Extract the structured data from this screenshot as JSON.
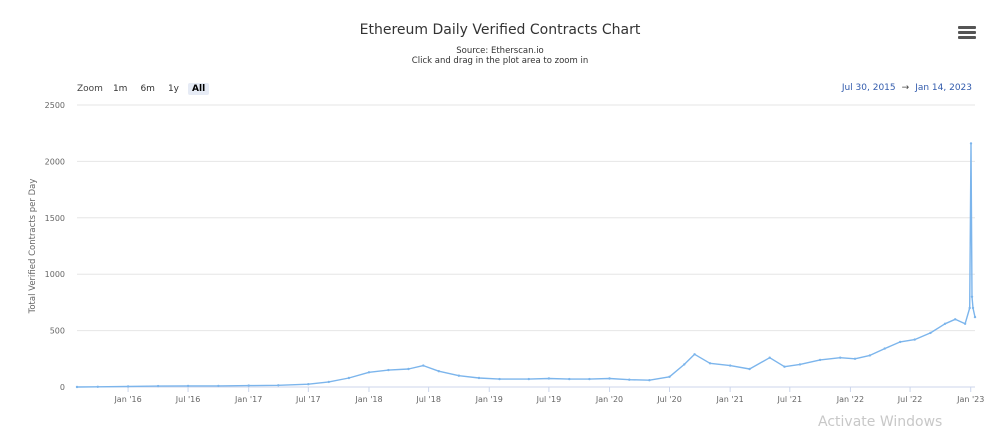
{
  "header": {
    "title": "Ethereum Daily Verified Contracts Chart",
    "source": "Source: Etherscan.io",
    "hint": "Click and drag in the plot area to zoom in",
    "menu_icon": "hamburger-menu-icon"
  },
  "zoom": {
    "label": "Zoom",
    "buttons": [
      "1m",
      "6m",
      "1y",
      "All"
    ],
    "active": "All"
  },
  "range": {
    "from": "Jul 30, 2015",
    "arrow": "→",
    "to": "Jan 14, 2023"
  },
  "watermark": "Activate Windows",
  "colors": {
    "series": "#7cb5ec",
    "grid": "#e6e6e6",
    "axis_text": "#666666",
    "range_text": "#335cad"
  },
  "chart_data": {
    "type": "line",
    "title": "Ethereum Daily Verified Contracts Chart",
    "subtitle": "Source: Etherscan.io",
    "xlabel": "",
    "ylabel": "Total Verified Contracts per Day",
    "ylim": [
      0,
      2500
    ],
    "yticks": [
      0,
      500,
      1000,
      1500,
      2000,
      2500
    ],
    "xlim": [
      "2015-07-30",
      "2023-01-14"
    ],
    "xticks": [
      {
        "date": "2016-01-01",
        "label": "Jan '16"
      },
      {
        "date": "2016-07-01",
        "label": "Jul '16"
      },
      {
        "date": "2017-01-01",
        "label": "Jan '17"
      },
      {
        "date": "2017-07-01",
        "label": "Jul '17"
      },
      {
        "date": "2018-01-01",
        "label": "Jan '18"
      },
      {
        "date": "2018-07-01",
        "label": "Jul '18"
      },
      {
        "date": "2019-01-01",
        "label": "Jan '19"
      },
      {
        "date": "2019-07-01",
        "label": "Jul '19"
      },
      {
        "date": "2020-01-01",
        "label": "Jan '20"
      },
      {
        "date": "2020-07-01",
        "label": "Jul '20"
      },
      {
        "date": "2021-01-01",
        "label": "Jan '21"
      },
      {
        "date": "2021-07-01",
        "label": "Jul '21"
      },
      {
        "date": "2022-01-01",
        "label": "Jan '22"
      },
      {
        "date": "2022-07-01",
        "label": "Jul '22"
      },
      {
        "date": "2023-01-01",
        "label": "Jan '23"
      }
    ],
    "grid": true,
    "legend": false,
    "series": [
      {
        "x": [
          "2015-07-30",
          "2015-10-01",
          "2016-01-01",
          "2016-04-01",
          "2016-07-01",
          "2016-10-01",
          "2017-01-01",
          "2017-04-01",
          "2017-07-01",
          "2017-09-01",
          "2017-11-01",
          "2018-01-01",
          "2018-03-01",
          "2018-05-01",
          "2018-06-15",
          "2018-08-01",
          "2018-10-01",
          "2018-12-01",
          "2019-02-01",
          "2019-05-01",
          "2019-07-01",
          "2019-09-01",
          "2019-11-01",
          "2020-01-01",
          "2020-03-01",
          "2020-05-01",
          "2020-07-01",
          "2020-08-15",
          "2020-09-15",
          "2020-11-01",
          "2021-01-01",
          "2021-03-01",
          "2021-05-01",
          "2021-06-15",
          "2021-08-01",
          "2021-10-01",
          "2021-12-01",
          "2022-01-15",
          "2022-03-01",
          "2022-04-15",
          "2022-06-01",
          "2022-07-15",
          "2022-09-01",
          "2022-10-15",
          "2022-11-15",
          "2022-12-15",
          "2022-12-29",
          "2023-01-02",
          "2023-01-05",
          "2023-01-08",
          "2023-01-14"
        ],
        "values": [
          0,
          2,
          5,
          8,
          10,
          10,
          12,
          15,
          25,
          45,
          80,
          130,
          150,
          160,
          190,
          140,
          100,
          80,
          70,
          70,
          75,
          70,
          70,
          75,
          65,
          60,
          90,
          200,
          290,
          210,
          190,
          160,
          260,
          180,
          200,
          240,
          260,
          250,
          280,
          340,
          400,
          420,
          480,
          560,
          600,
          560,
          700,
          2160,
          800,
          700,
          620
        ]
      }
    ]
  }
}
